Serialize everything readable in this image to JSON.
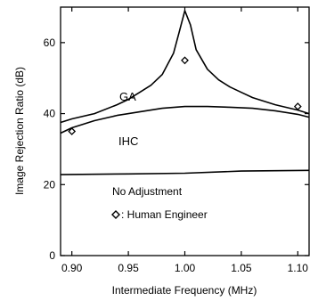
{
  "chart_data": {
    "type": "line",
    "xlabel": "Intermediate Frequency (MHz)",
    "ylabel": "Image Rejection Ratio (dB)",
    "xlim": [
      0.89,
      1.11
    ],
    "ylim": [
      0,
      70
    ],
    "xticks": [
      0.9,
      0.95,
      1.0,
      1.05,
      1.1
    ],
    "xtick_labels": [
      "0.90",
      "0.95",
      "1.00",
      "1.05",
      "1.10"
    ],
    "yticks": [
      0,
      20,
      40,
      60
    ],
    "ytick_labels": [
      "0",
      "20",
      "40",
      "60"
    ],
    "grid": false,
    "series": [
      {
        "name": "GA",
        "x": [
          0.89,
          0.9,
          0.92,
          0.94,
          0.95,
          0.96,
          0.97,
          0.98,
          0.99,
          0.995,
          1.0,
          1.005,
          1.01,
          1.02,
          1.03,
          1.04,
          1.05,
          1.06,
          1.08,
          1.1,
          1.11
        ],
        "y": [
          37.5,
          38.5,
          40.0,
          42.5,
          44.0,
          46.0,
          48.0,
          51.0,
          57.0,
          63.0,
          69.0,
          65.0,
          58.0,
          52.5,
          49.5,
          47.5,
          46.0,
          44.5,
          42.5,
          41.0,
          40.0
        ]
      },
      {
        "name": "IHC",
        "x": [
          0.89,
          0.9,
          0.92,
          0.94,
          0.96,
          0.98,
          1.0,
          1.02,
          1.04,
          1.06,
          1.08,
          1.1,
          1.11
        ],
        "y": [
          34.5,
          36.0,
          38.0,
          39.5,
          40.5,
          41.5,
          42.0,
          42.0,
          41.8,
          41.5,
          40.8,
          39.8,
          39.0
        ]
      },
      {
        "name": "No Adjustment",
        "x": [
          0.89,
          0.95,
          1.0,
          1.05,
          1.11
        ],
        "y": [
          22.8,
          23.0,
          23.2,
          23.8,
          24.0
        ]
      }
    ],
    "markers": {
      "name": "Human Engineer",
      "symbol": "diamond",
      "x": [
        0.9,
        1.0,
        1.1
      ],
      "y": [
        35.0,
        55.0,
        42.0
      ]
    },
    "annotations": {
      "ga": "GA",
      "ihc": "IHC",
      "no_adjustment": "No Adjustment",
      "legend_marker_text": ": Human Engineer"
    }
  }
}
